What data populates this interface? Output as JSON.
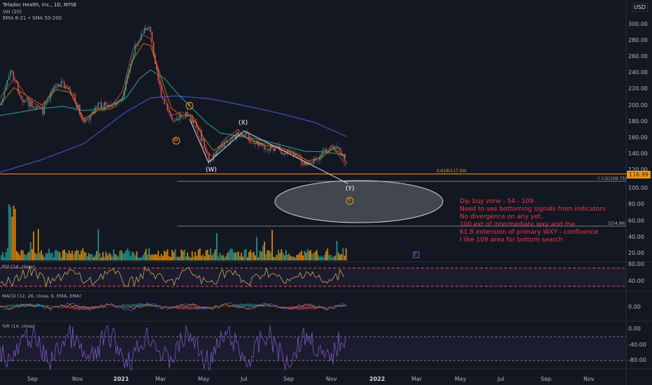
{
  "header": {
    "title": "Teladoc Health, Inc., 1D, NYSE",
    "vol": "Vol (20)",
    "ema": "EMA 8-21 • SMA 50-200",
    "currency": "USD"
  },
  "price_axis": [
    "300.00",
    "280.00",
    "260.00",
    "240.00",
    "220.00",
    "200.00",
    "180.00",
    "160.00",
    "140.00",
    "120.00",
    "100.00",
    "80.00",
    "60.00",
    "40.00",
    "20.00"
  ],
  "last_price": "116.99",
  "rsi": {
    "label": "RSI (14, close)",
    "ticks": [
      "80.00",
      "40.00"
    ]
  },
  "macd": {
    "label": "MACD (12, 26, close, 9, EMA, EMA)",
    "ticks": [
      "0.00"
    ]
  },
  "wr": {
    "label": "%R (14, close)",
    "ticks": [
      "0.00",
      "-40.00",
      "-80.00"
    ]
  },
  "time_axis": [
    "Sep",
    "Nov",
    "2021",
    "Mar",
    "May",
    "Jul",
    "Sep",
    "Nov",
    "2022",
    "Mar",
    "May",
    "Jul",
    "Sep",
    "Nov"
  ],
  "waves": {
    "W": "(W)",
    "X": "(X)",
    "Y": "(Y)",
    "w_orange": "W",
    "x_orange": "X",
    "y_orange": "Y",
    "e_marker": "E"
  },
  "fib": {
    "f618": "0.618(117.94)",
    "f1": "1(109.75)",
    "f1_prefix": "0.61",
    "f100": "1(54.96)"
  },
  "annotation": "Dip buy zone - 54 - 109.\nNeed to see bottoming signals from indicators\nNo divergence on any yet.\n100 ext of intermediate wxy and the\n61.8 extension of primary WXY - confluence\nI like 109 area for bottom search",
  "colors": {
    "bg": "#131722",
    "up": "#26a69a",
    "down": "#ef5350",
    "orange": "#ff9800",
    "annot": "#f23645",
    "purple": "#7e57c2"
  }
}
